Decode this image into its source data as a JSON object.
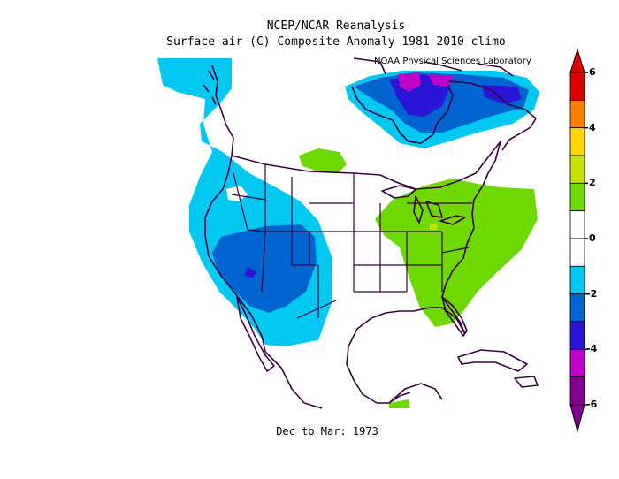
{
  "title": "NCEP/NCAR Reanalysis",
  "subtitle": "Surface air (C) Composite Anomaly 1981-2010 climo",
  "credit": "NOAA Physical Sciences Laboratory",
  "footer": "Dec to Mar: 1973",
  "colorbar": {
    "labels": [
      "6",
      "4",
      "2",
      "0",
      "-2",
      "-4",
      "-6"
    ],
    "colors": [
      "#dd0000",
      "#ff7f00",
      "#ffd400",
      "#c8e000",
      "#6ed800",
      "#ffffff",
      "#ffffff",
      "#00c8f0",
      "#0064d0",
      "#2a14d8",
      "#c000c8",
      "#800090"
    ]
  },
  "colors": {
    "cold1": "#00c8f0",
    "cold2": "#0064d0",
    "cold3": "#2a14d8",
    "cold4": "#c000c8",
    "cold5": "#800090",
    "warm1": "#6ed800",
    "warm2": "#c8e000",
    "coastline": "#3a0040"
  }
}
